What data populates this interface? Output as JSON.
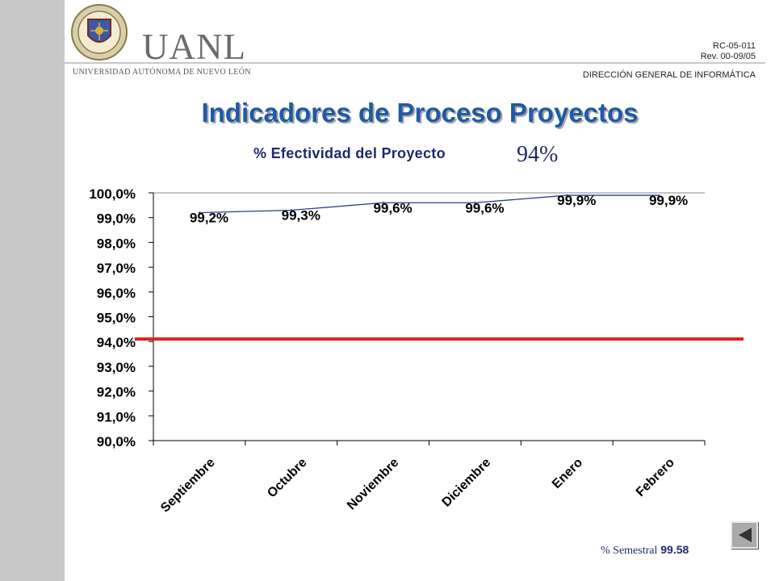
{
  "header": {
    "university_short": "UANL",
    "university_full": "UNIVERSIDAD AUTÓNOMA DE NUEVO LEÓN",
    "doc_code": "RC-05-011",
    "revision": "Rev. 00-09/05",
    "department": "DIRECCIÓN GENERAL DE INFORMÁTICA"
  },
  "title": "Indicadores de Proceso Proyectos",
  "subtitle": "% Efectividad del Proyecto",
  "target_label": "94%",
  "footer": {
    "semestral_label": "% Semestral",
    "semestral_value": "99.58"
  },
  "nav": {
    "back_icon": "triangle-left-icon"
  },
  "chart_data": {
    "type": "line",
    "categories": [
      "Septiembre",
      "Octubre",
      "Noviembre",
      "Diciembre",
      "Enero",
      "Febrero"
    ],
    "series": [
      {
        "values": [
          99.2,
          99.3,
          99.6,
          99.6,
          99.9,
          99.9
        ],
        "labels": [
          "99,2%",
          "99,3%",
          "99,6%",
          "99,6%",
          "99,9%",
          "99,9%"
        ],
        "color": "#2b3a8f"
      }
    ],
    "target": {
      "value": 94.1,
      "color": "#e02020"
    },
    "ylim": [
      90,
      100
    ],
    "yticks": [
      100,
      99,
      98,
      97,
      96,
      95,
      94,
      93,
      92,
      91,
      90
    ],
    "ytick_labels": [
      "100,0%",
      "99,0%",
      "98,0%",
      "97,0%",
      "96,0%",
      "95,0%",
      "94,0%",
      "93,0%",
      "92,0%",
      "91,0%",
      "90,0%"
    ],
    "grid": false
  }
}
